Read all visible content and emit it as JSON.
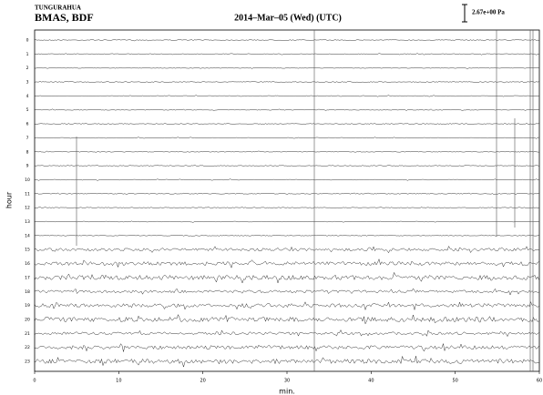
{
  "chart_data": {
    "type": "helicorder",
    "station": "TUNGURAHUA",
    "channel": "BMAS, BDF",
    "title": "2014–Mar–05 (Wed) (UTC)",
    "scale_label": "2.67e+00 Pa",
    "x_label": "min.",
    "y_label": "hour",
    "categories": [
      "0",
      "1",
      "2",
      "3",
      "4",
      "5",
      "6",
      "7",
      "8",
      "9",
      "10",
      "11",
      "12",
      "13",
      "14",
      "15",
      "16",
      "17",
      "18",
      "19",
      "20",
      "21",
      "22",
      "23"
    ],
    "xlim": [
      0,
      60
    ],
    "xticks": [
      0,
      10,
      20,
      30,
      40,
      50,
      60
    ],
    "color": "#000000"
  }
}
